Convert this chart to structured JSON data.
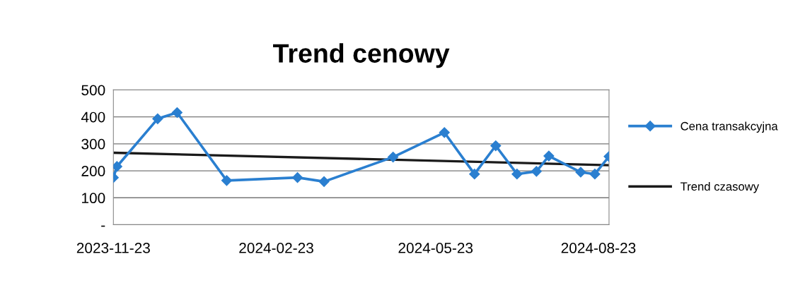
{
  "chart_data": {
    "type": "line",
    "title": "Trend cenowy",
    "xlim": [
      "2023-11-23",
      "2024-08-29"
    ],
    "xticks": [
      "2023-11-23",
      "2024-02-23",
      "2024-05-23",
      "2024-08-23"
    ],
    "ylim": [
      0,
      500
    ],
    "yticks": [
      {
        "value": 0,
        "label": "-"
      },
      100,
      200,
      300,
      400,
      500
    ],
    "grid": "y",
    "legend": "right",
    "series": [
      {
        "name": "Cena transakcyjna",
        "color": "#2a7fd0",
        "marker": "diamond",
        "line_style": "solid",
        "x": [
          "2023-11-23",
          "2023-11-25",
          "2023-12-18",
          "2023-12-29",
          "2024-01-26",
          "2024-03-06",
          "2024-03-21",
          "2024-04-29",
          "2024-05-28",
          "2024-06-14",
          "2024-06-26",
          "2024-07-08",
          "2024-07-19",
          "2024-07-26",
          "2024-08-13",
          "2024-08-21",
          "2024-08-29"
        ],
        "values": [
          175,
          216,
          393,
          416,
          164,
          175,
          160,
          251,
          342,
          188,
          293,
          188,
          198,
          255,
          195,
          188,
          253
        ]
      },
      {
        "name": "Trend czasowy",
        "color": "#1a1a1a",
        "marker": "none",
        "line_style": "solid",
        "x": [
          "2023-11-23",
          "2024-08-29"
        ],
        "values": [
          267,
          221
        ]
      }
    ]
  }
}
